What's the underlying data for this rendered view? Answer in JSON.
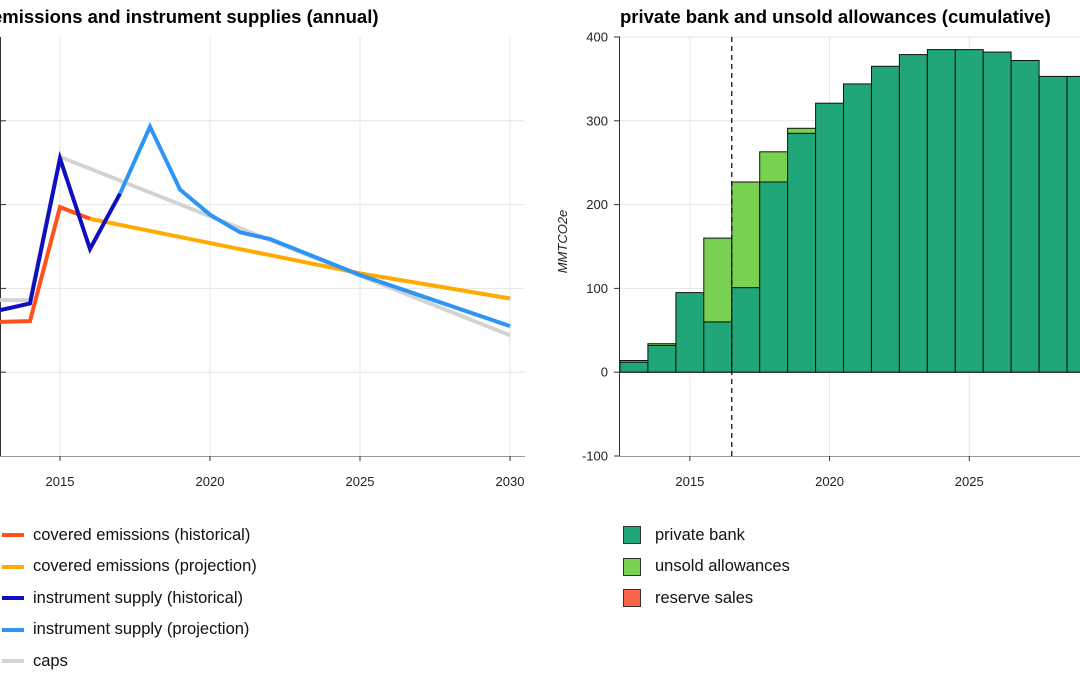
{
  "chart_data": [
    {
      "type": "line",
      "title": "emissions and instrument supplies (annual)",
      "xlim": [
        2013,
        2030.5
      ],
      "ylim": [
        0,
        500
      ],
      "x_ticks": [
        2015,
        2020,
        2025,
        2030
      ],
      "grid": true,
      "legend_position": "bottom",
      "series": [
        {
          "name": "covered emissions (historical)",
          "color": "#ff5119",
          "x": [
            2013,
            2014,
            2015,
            2016
          ],
          "y": [
            160,
            161,
            297,
            283
          ]
        },
        {
          "name": "covered emissions (projection)",
          "color": "#ffaa00",
          "x": [
            2016,
            2025,
            2030
          ],
          "y": [
            283,
            218,
            188
          ]
        },
        {
          "name": "instrument supply (historical)",
          "color": "#0f0fc0",
          "x": [
            2013,
            2014,
            2015,
            2016,
            2017
          ],
          "y": [
            174,
            182,
            355,
            247,
            313
          ]
        },
        {
          "name": "instrument supply (projection)",
          "color": "#2d95f5",
          "x": [
            2017,
            2018,
            2019,
            2020,
            2021,
            2022,
            2025,
            2030
          ],
          "y": [
            313,
            393,
            318,
            288,
            267,
            259,
            216,
            155
          ]
        },
        {
          "name": "caps",
          "color": "#d3d3d3",
          "x": [
            2013,
            2014,
            2015,
            2030
          ],
          "y": [
            186,
            186,
            357,
            144
          ]
        }
      ]
    },
    {
      "type": "bar",
      "title": "private bank and unsold allowances (cumulative)",
      "ylabel": "MMTCO2e",
      "xlim": [
        2012.5,
        2029.5
      ],
      "ylim": [
        -100,
        400
      ],
      "y_ticks": [
        -100,
        0,
        100,
        200,
        300,
        400
      ],
      "x_ticks": [
        2015,
        2020,
        2025
      ],
      "grid": true,
      "legend_position": "bottom",
      "marker_line_x": 2016.5,
      "categories": [
        2013,
        2014,
        2015,
        2016,
        2017,
        2018,
        2019,
        2020,
        2021,
        2022,
        2023,
        2024,
        2025,
        2026,
        2027,
        2028,
        2029
      ],
      "series": [
        {
          "name": "private bank",
          "color": "#21a67a",
          "values": [
            12,
            32,
            95,
            60,
            101,
            227,
            285,
            321,
            344,
            365,
            379,
            385,
            385,
            382,
            372,
            353,
            353
          ]
        },
        {
          "name": "unsold allowances",
          "color": "#78d151",
          "values": [
            2,
            2,
            0,
            100,
            126,
            36,
            6,
            0,
            0,
            0,
            0,
            0,
            0,
            0,
            0,
            0,
            0
          ]
        },
        {
          "name": "reserve sales",
          "color": "#fc6448",
          "values": [
            0,
            0,
            0,
            0,
            0,
            0,
            0,
            0,
            0,
            0,
            0,
            0,
            0,
            0,
            0,
            0,
            0
          ]
        }
      ]
    }
  ]
}
